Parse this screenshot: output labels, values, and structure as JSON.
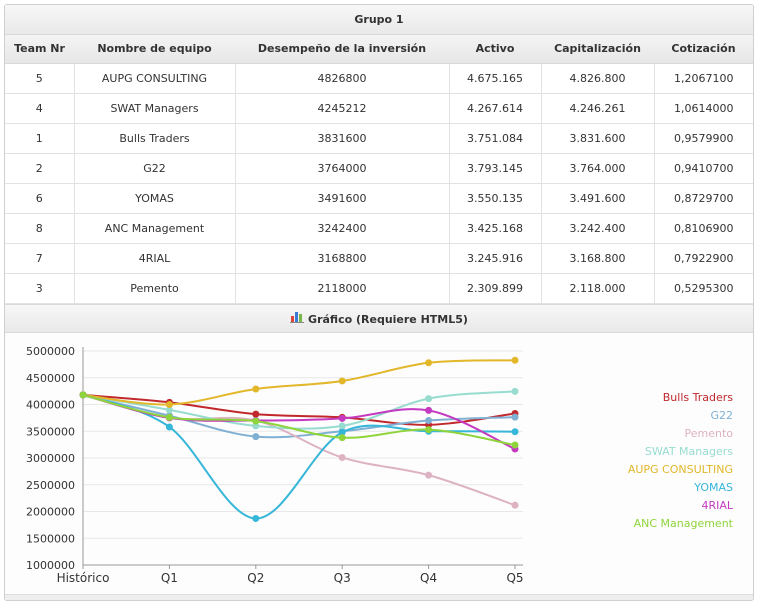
{
  "group_title": "Grupo 1",
  "table": {
    "headers": [
      "Team Nr",
      "Nombre de equipo",
      "Desempeño de la inversión",
      "Activo",
      "Capitalización",
      "Cotización"
    ],
    "rows": [
      [
        "5",
        "AUPG CONSULTING",
        "4826800",
        "4.675.165",
        "4.826.800",
        "1,2067100"
      ],
      [
        "4",
        "SWAT Managers",
        "4245212",
        "4.267.614",
        "4.246.261",
        "1,0614000"
      ],
      [
        "1",
        "Bulls Traders",
        "3831600",
        "3.751.084",
        "3.831.600",
        "0,9579900"
      ],
      [
        "2",
        "G22",
        "3764000",
        "3.793.145",
        "3.764.000",
        "0,9410700"
      ],
      [
        "6",
        "YOMAS",
        "3491600",
        "3.550.135",
        "3.491.600",
        "0,8729700"
      ],
      [
        "8",
        "ANC Management",
        "3242400",
        "3.425.168",
        "3.242.400",
        "0,8106900"
      ],
      [
        "7",
        "4RIAL",
        "3168800",
        "3.245.916",
        "3.168.800",
        "0,7922900"
      ],
      [
        "3",
        "Pemento",
        "2118000",
        "2.309.899",
        "2.118.000",
        "0,5295300"
      ]
    ]
  },
  "chart_header": "Gráfico (Requiere HTML5)",
  "icons": {
    "chart_header_icon": "bar-chart-icon"
  },
  "chart_data": {
    "type": "line",
    "categories": [
      "Histórico",
      "Q1",
      "Q2",
      "Q3",
      "Q4",
      "Q5"
    ],
    "ylim": [
      1000000,
      5000000
    ],
    "yticks": [
      "1000000",
      "1500000",
      "2000000",
      "2500000",
      "3000000",
      "3500000",
      "4000000",
      "4500000",
      "5000000"
    ],
    "series": [
      {
        "name": "Bulls Traders",
        "color": "#c0282c",
        "values": [
          4180000,
          4040000,
          3820000,
          3760000,
          3620000,
          3831600
        ]
      },
      {
        "name": "G22",
        "color": "#7fb0d4",
        "values": [
          4180000,
          3790000,
          3400000,
          3500000,
          3700000,
          3764000
        ]
      },
      {
        "name": "Pemento",
        "color": "#ddb3c4",
        "values": [
          4180000,
          3750000,
          3700000,
          3010000,
          2680000,
          2118000
        ]
      },
      {
        "name": "SWAT Managers",
        "color": "#98dcd0",
        "values": [
          4180000,
          3900000,
          3600000,
          3600000,
          4110000,
          4245212
        ]
      },
      {
        "name": "AUPG CONSULTING",
        "color": "#e2b72a",
        "values": [
          4180000,
          4000000,
          4290000,
          4440000,
          4780000,
          4826800
        ]
      },
      {
        "name": "YOMAS",
        "color": "#36b6d8",
        "values": [
          4180000,
          3580000,
          1870000,
          3480000,
          3500000,
          3491600
        ]
      },
      {
        "name": "4RIAL",
        "color": "#c43ac0",
        "values": [
          4180000,
          3750000,
          3700000,
          3740000,
          3890000,
          3168800
        ]
      },
      {
        "name": "ANC Management",
        "color": "#8ed43a",
        "values": [
          4180000,
          3760000,
          3690000,
          3380000,
          3530000,
          3242400
        ]
      }
    ]
  }
}
